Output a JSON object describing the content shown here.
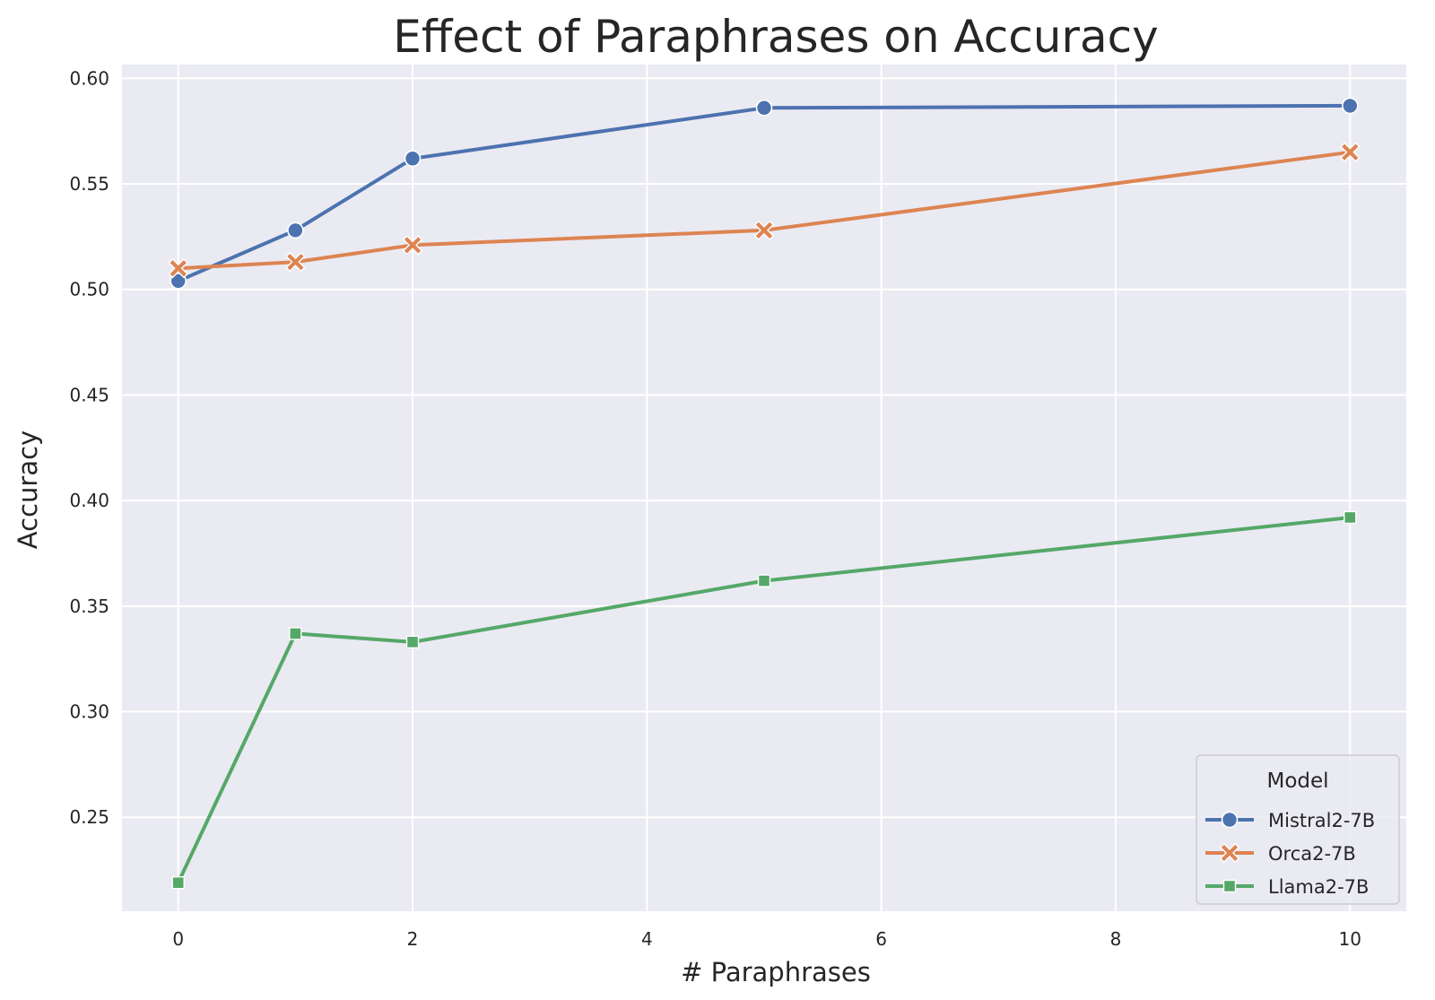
{
  "chart_data": {
    "type": "line",
    "title": "Effect of Paraphrases on Accuracy",
    "xlabel": "# Paraphrases",
    "ylabel": "Accuracy",
    "x": [
      0,
      1,
      2,
      5,
      10
    ],
    "xlim": [
      -0.48,
      10.48
    ],
    "ylim": [
      0.2055,
      0.6065
    ],
    "xticks": [
      0,
      2,
      4,
      6,
      8,
      10
    ],
    "xtick_labels": [
      "0",
      "2",
      "4",
      "6",
      "8",
      "10"
    ],
    "yticks": [
      0.25,
      0.3,
      0.35,
      0.4,
      0.45,
      0.5,
      0.55,
      0.6
    ],
    "ytick_labels": [
      "0.25",
      "0.30",
      "0.35",
      "0.40",
      "0.45",
      "0.50",
      "0.55",
      "0.60"
    ],
    "grid": true,
    "background_color": "#eaeaf2",
    "grid_color": "#ffffff",
    "legend": {
      "title": "Model",
      "position": "lower-right"
    },
    "series": [
      {
        "name": "Mistral2-7B",
        "values": [
          0.504,
          0.528,
          0.562,
          0.586,
          0.587
        ],
        "color": "#4c72b0",
        "marker": "circle"
      },
      {
        "name": "Orca2-7B",
        "values": [
          0.51,
          0.513,
          0.521,
          0.528,
          0.565
        ],
        "color": "#dd8452",
        "marker": "x"
      },
      {
        "name": "Llama2-7B",
        "values": [
          0.219,
          0.337,
          0.333,
          0.362,
          0.392
        ],
        "color": "#55a868",
        "marker": "square"
      }
    ]
  }
}
